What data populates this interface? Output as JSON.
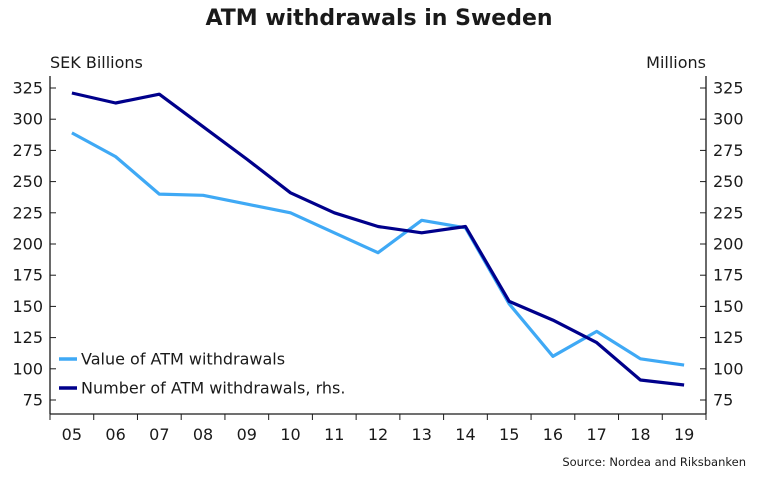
{
  "chart_data": {
    "type": "line",
    "title": "ATM withdrawals in Sweden",
    "source": "Source: Nordea and Riksbanken",
    "categories": [
      "05",
      "06",
      "07",
      "08",
      "09",
      "10",
      "11",
      "12",
      "13",
      "14",
      "15",
      "16",
      "17",
      "18",
      "19"
    ],
    "left_axis": {
      "label": "SEK Billions",
      "ylim": [
        75,
        325
      ],
      "ticks": [
        75,
        100,
        125,
        150,
        175,
        200,
        225,
        250,
        275,
        300,
        325
      ]
    },
    "right_axis": {
      "label": "Millions",
      "ylim": [
        75,
        325
      ],
      "ticks": [
        75,
        100,
        125,
        150,
        175,
        200,
        225,
        250,
        275,
        300,
        325
      ]
    },
    "grid": false,
    "legend_position": "bottom-left",
    "series": [
      {
        "name": "Value of ATM withdrawals",
        "axis": "left",
        "color": "#3fa9f5",
        "values": [
          289,
          270,
          240,
          239,
          232,
          225,
          209,
          193,
          219,
          213,
          152,
          110,
          130,
          108,
          103
        ]
      },
      {
        "name": "Number of ATM withdrawals, rhs.",
        "axis": "right",
        "color": "#00008b",
        "values": [
          321,
          313,
          320,
          294,
          268,
          241,
          225,
          214,
          209,
          214,
          154,
          139,
          121,
          91,
          87
        ]
      }
    ]
  }
}
